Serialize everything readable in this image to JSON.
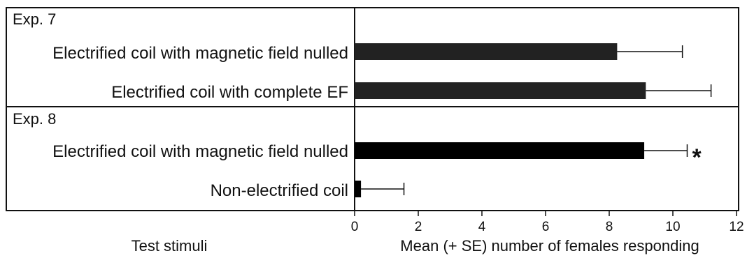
{
  "chart_data": {
    "type": "bar",
    "orientation": "horizontal",
    "xlabel": "Mean (+ SE) number of females responding",
    "ylabel": "Test stimuli",
    "xlim": [
      0,
      12
    ],
    "xticks": [
      "0",
      "2",
      "4",
      "6",
      "8",
      "10",
      "12"
    ],
    "groups": [
      {
        "label": "Exp. 7",
        "bars": [
          {
            "label": "Electrified coil with magnetic field nulled",
            "value": 8.25,
            "se": 2.05,
            "marker": "",
            "color": "#222222"
          },
          {
            "label": "Electrified coil with complete EF",
            "value": 9.15,
            "se": 2.05,
            "marker": "",
            "color": "#222222"
          }
        ]
      },
      {
        "label": "Exp. 8",
        "bars": [
          {
            "label": "Electrified coil with magnetic field nulled",
            "value": 9.1,
            "se": 1.35,
            "marker": "*",
            "color": "#000000"
          },
          {
            "label": "Non-electrified coil",
            "value": 0.2,
            "se": 1.35,
            "marker": "",
            "color": "#000000"
          }
        ]
      }
    ]
  }
}
